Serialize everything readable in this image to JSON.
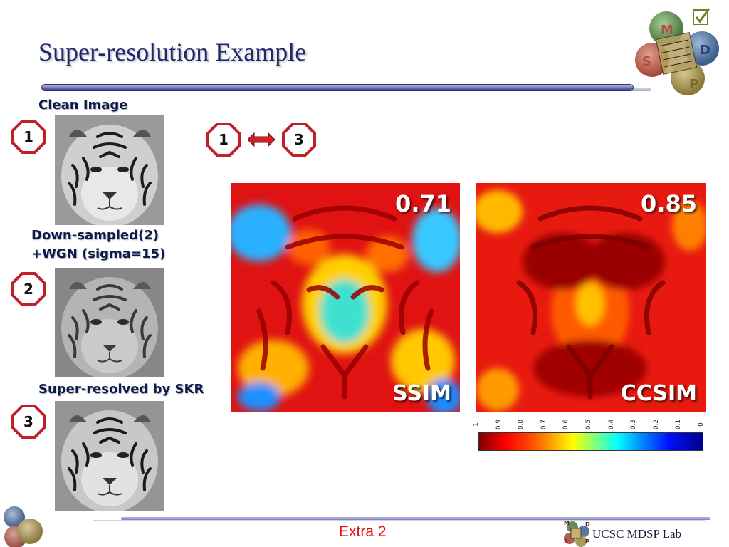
{
  "slide": {
    "title": "Super-resolution Example",
    "footer": "Extra 2",
    "lab_name": "UCSC MDSP Lab",
    "logo_letters": [
      "M",
      "D",
      "S",
      "P"
    ]
  },
  "left_column": {
    "clean_label": "Clean Image",
    "downsampled_label_line1": "Down-sampled(2)",
    "downsampled_label_line2": "+WGN (sigma=15)",
    "superres_label": "Super-resolved by SKR",
    "badges": [
      "1",
      "2",
      "3"
    ]
  },
  "comparison": {
    "left_badge": "1",
    "right_badge": "3",
    "arrow_icon": "double-arrow-icon"
  },
  "maps": [
    {
      "metric": "SSIM",
      "value": "0.71"
    },
    {
      "metric": "CCSIM",
      "value": "0.85"
    }
  ],
  "colorbar": {
    "ticks": [
      "1",
      "0.9",
      "0.8",
      "0.7",
      "0.6",
      "0.5",
      "0.4",
      "0.3",
      "0.2",
      "0.1",
      "0"
    ],
    "colors": [
      "#800000",
      "#ff0000",
      "#ffb000",
      "#ffff00",
      "#00ffff",
      "#0010ff",
      "#00008a"
    ]
  },
  "colors": {
    "title": "#1f2a6e",
    "badge_border": "#c0202a",
    "footer": "#e01010"
  }
}
